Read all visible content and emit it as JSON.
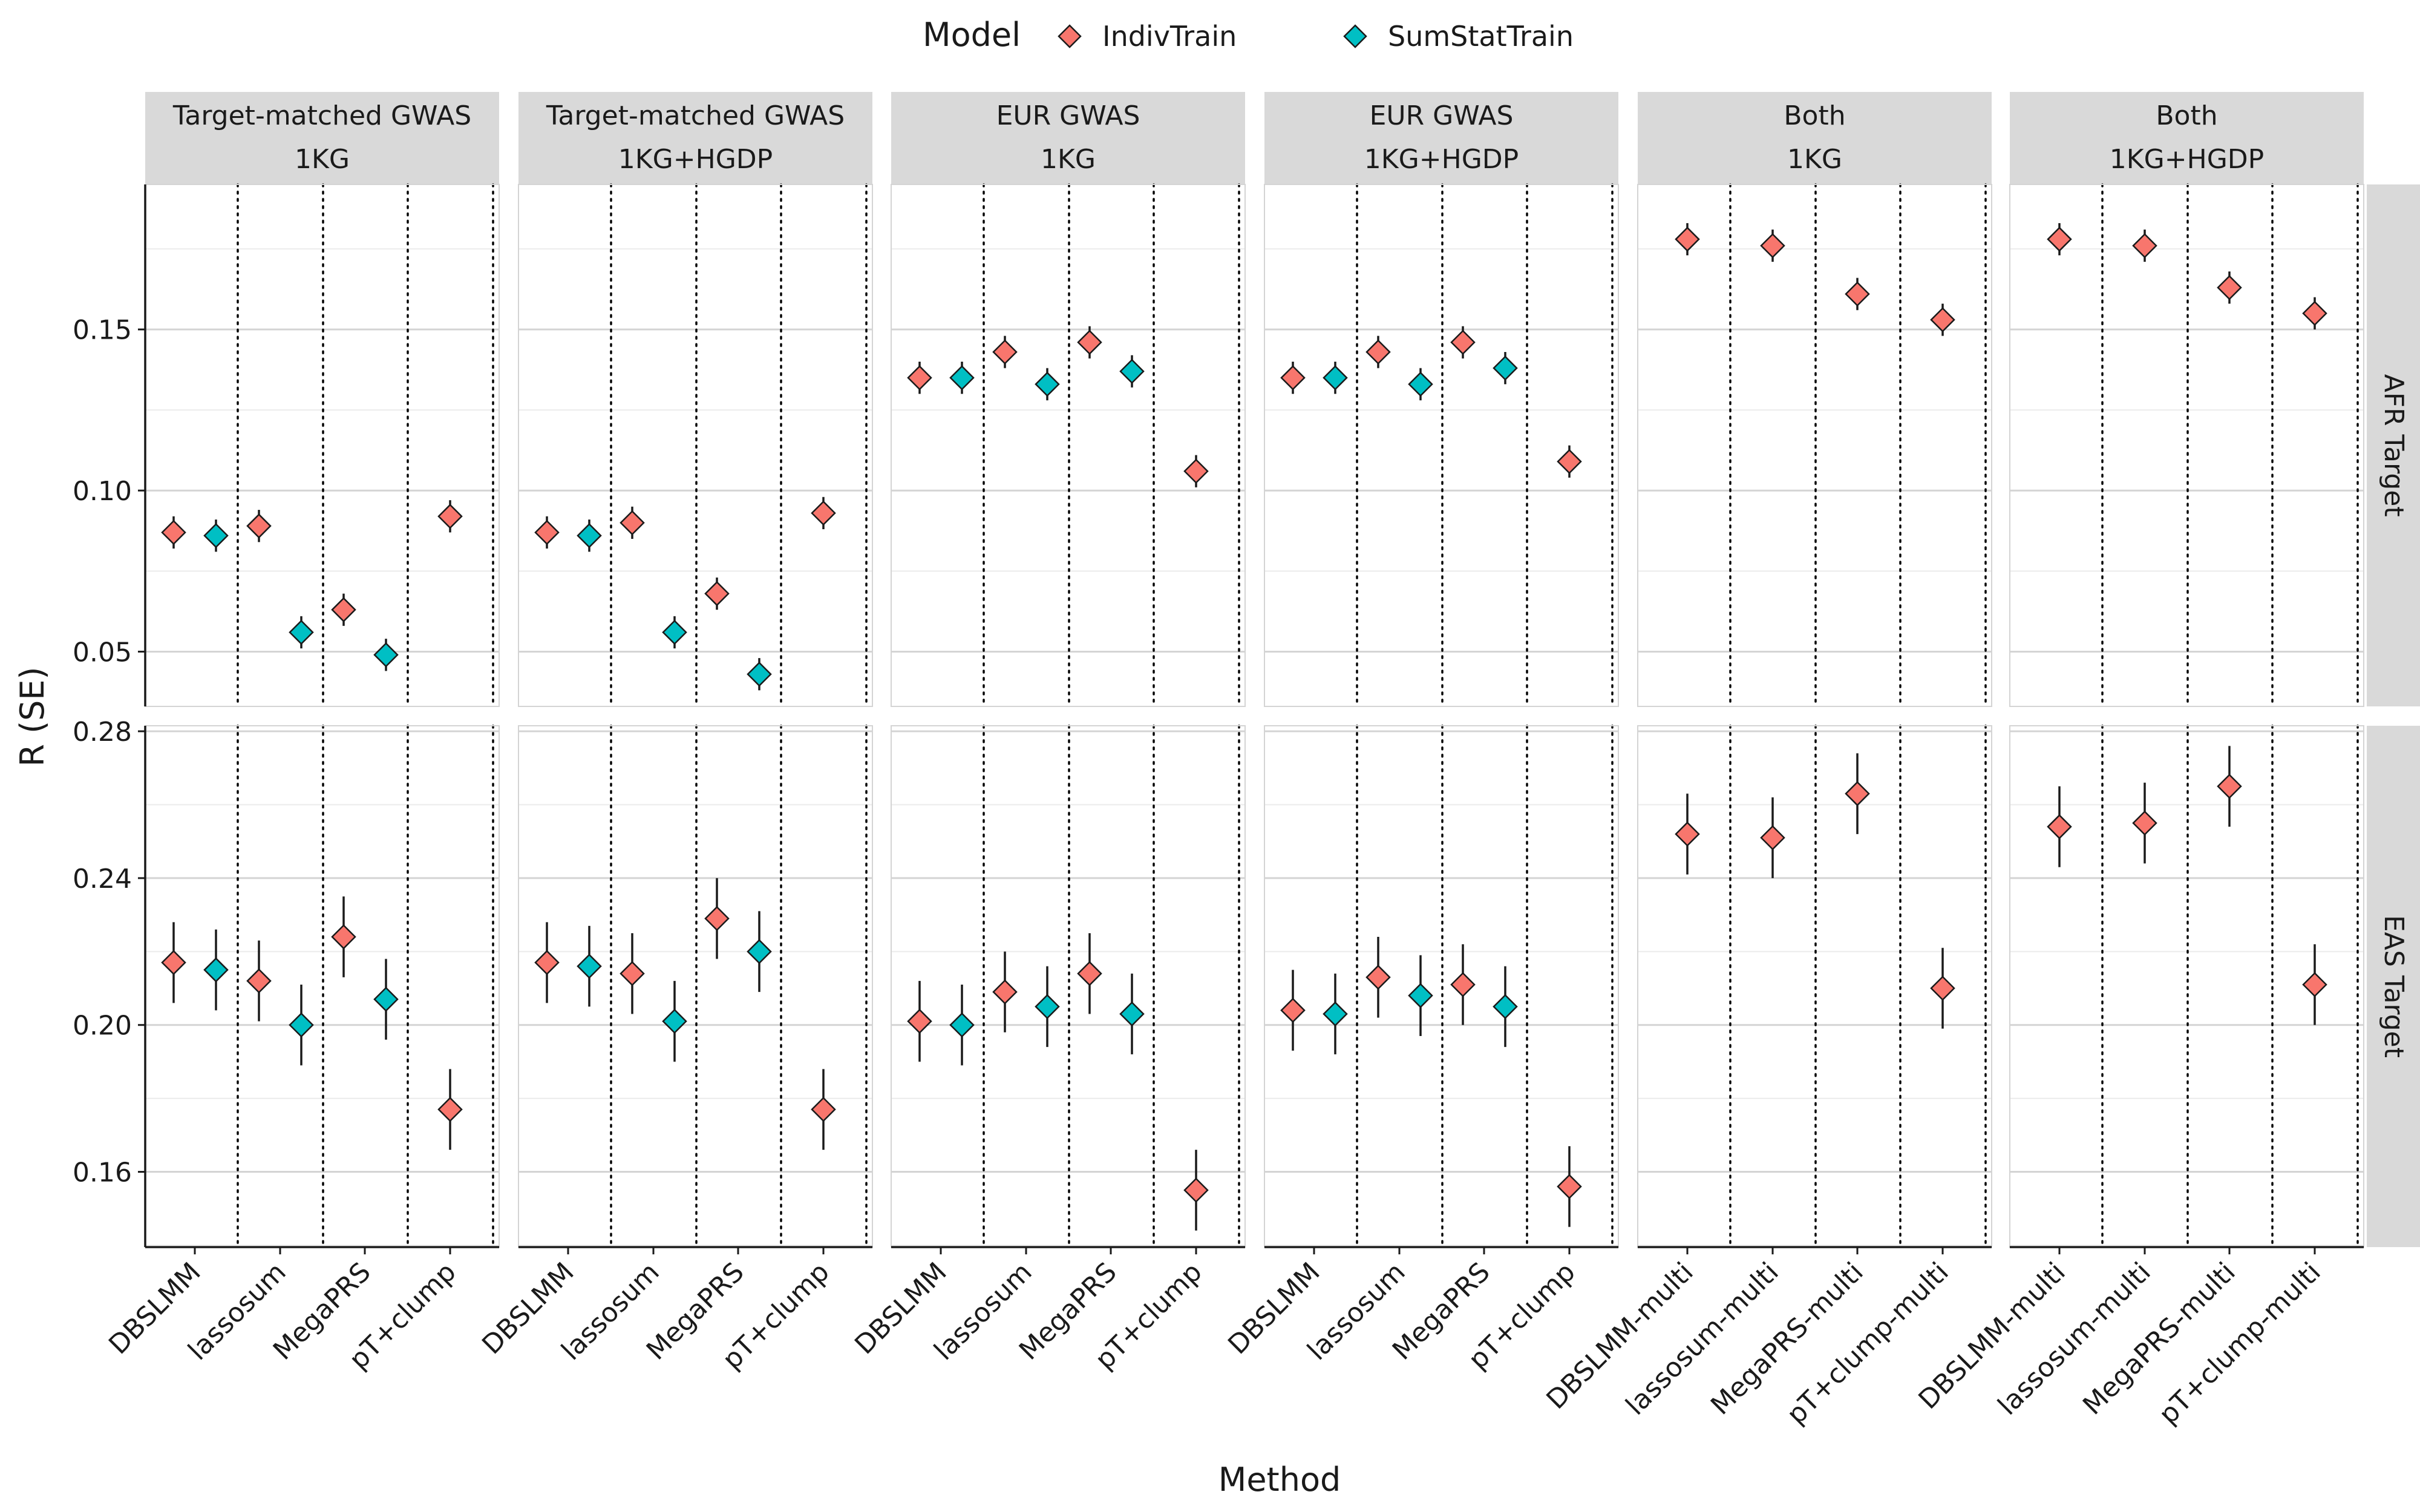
{
  "chart_data": {
    "type": "scatter",
    "subtype": "faceted point-range (value ± SE)",
    "xlabel": "Method",
    "ylabel": "R (SE)",
    "legend": {
      "title": "Model",
      "position": "top",
      "entries": [
        {
          "name": "IndivTrain",
          "color": "#F8766D",
          "marker": "diamond"
        },
        {
          "name": "SumStatTrain",
          "color": "#00BFC4",
          "marker": "diamond"
        }
      ]
    },
    "grid": true,
    "columns": [
      {
        "title_line1": "Target-matched GWAS",
        "title_line2": "1KG",
        "methods": [
          "DBSLMM",
          "lassosum",
          "MegaPRS",
          "pT+clump"
        ]
      },
      {
        "title_line1": "Target-matched GWAS",
        "title_line2": "1KG+HGDP",
        "methods": [
          "DBSLMM",
          "lassosum",
          "MegaPRS",
          "pT+clump"
        ]
      },
      {
        "title_line1": "EUR GWAS",
        "title_line2": "1KG",
        "methods": [
          "DBSLMM",
          "lassosum",
          "MegaPRS",
          "pT+clump"
        ]
      },
      {
        "title_line1": "EUR GWAS",
        "title_line2": "1KG+HGDP",
        "methods": [
          "DBSLMM",
          "lassosum",
          "MegaPRS",
          "pT+clump"
        ]
      },
      {
        "title_line1": "Both",
        "title_line2": "1KG",
        "methods": [
          "DBSLMM-multi",
          "lassosum-multi",
          "MegaPRS-multi",
          "pT+clump-multi"
        ]
      },
      {
        "title_line1": "Both",
        "title_line2": "1KG+HGDP",
        "methods": [
          "DBSLMM-multi",
          "lassosum-multi",
          "MegaPRS-multi",
          "pT+clump-multi"
        ]
      }
    ],
    "rows": [
      {
        "label": "AFR Target",
        "ylim": [
          0.033,
          0.195
        ],
        "ticks": [
          0.05,
          0.1,
          0.15
        ],
        "tick_labels": [
          "0.05",
          "0.10",
          "0.15"
        ]
      },
      {
        "label": "EAS Target",
        "ylim": [
          0.1395,
          0.2815
        ],
        "ticks": [
          0.16,
          0.2,
          0.24,
          0.28
        ],
        "tick_labels": [
          "0.16",
          "0.20",
          "0.24",
          "0.28"
        ]
      }
    ],
    "points": [
      {
        "row": 0,
        "col": 0,
        "method": 0,
        "series": "IndivTrain",
        "r": 0.087,
        "se": 0.005
      },
      {
        "row": 0,
        "col": 0,
        "method": 0,
        "series": "SumStatTrain",
        "r": 0.086,
        "se": 0.005
      },
      {
        "row": 0,
        "col": 0,
        "method": 1,
        "series": "IndivTrain",
        "r": 0.089,
        "se": 0.005
      },
      {
        "row": 0,
        "col": 0,
        "method": 1,
        "series": "SumStatTrain",
        "r": 0.056,
        "se": 0.005
      },
      {
        "row": 0,
        "col": 0,
        "method": 2,
        "series": "IndivTrain",
        "r": 0.063,
        "se": 0.005
      },
      {
        "row": 0,
        "col": 0,
        "method": 2,
        "series": "SumStatTrain",
        "r": 0.049,
        "se": 0.005
      },
      {
        "row": 0,
        "col": 0,
        "method": 3,
        "series": "IndivTrain",
        "r": 0.092,
        "se": 0.005
      },
      {
        "row": 0,
        "col": 1,
        "method": 0,
        "series": "IndivTrain",
        "r": 0.087,
        "se": 0.005
      },
      {
        "row": 0,
        "col": 1,
        "method": 0,
        "series": "SumStatTrain",
        "r": 0.086,
        "se": 0.005
      },
      {
        "row": 0,
        "col": 1,
        "method": 1,
        "series": "IndivTrain",
        "r": 0.09,
        "se": 0.005
      },
      {
        "row": 0,
        "col": 1,
        "method": 1,
        "series": "SumStatTrain",
        "r": 0.056,
        "se": 0.005
      },
      {
        "row": 0,
        "col": 1,
        "method": 2,
        "series": "IndivTrain",
        "r": 0.068,
        "se": 0.005
      },
      {
        "row": 0,
        "col": 1,
        "method": 2,
        "series": "SumStatTrain",
        "r": 0.043,
        "se": 0.005
      },
      {
        "row": 0,
        "col": 1,
        "method": 3,
        "series": "IndivTrain",
        "r": 0.093,
        "se": 0.005
      },
      {
        "row": 0,
        "col": 2,
        "method": 0,
        "series": "IndivTrain",
        "r": 0.135,
        "se": 0.005
      },
      {
        "row": 0,
        "col": 2,
        "method": 0,
        "series": "SumStatTrain",
        "r": 0.135,
        "se": 0.005
      },
      {
        "row": 0,
        "col": 2,
        "method": 1,
        "series": "IndivTrain",
        "r": 0.143,
        "se": 0.005
      },
      {
        "row": 0,
        "col": 2,
        "method": 1,
        "series": "SumStatTrain",
        "r": 0.133,
        "se": 0.005
      },
      {
        "row": 0,
        "col": 2,
        "method": 2,
        "series": "IndivTrain",
        "r": 0.146,
        "se": 0.005
      },
      {
        "row": 0,
        "col": 2,
        "method": 2,
        "series": "SumStatTrain",
        "r": 0.137,
        "se": 0.005
      },
      {
        "row": 0,
        "col": 2,
        "method": 3,
        "series": "IndivTrain",
        "r": 0.106,
        "se": 0.005
      },
      {
        "row": 0,
        "col": 3,
        "method": 0,
        "series": "IndivTrain",
        "r": 0.135,
        "se": 0.005
      },
      {
        "row": 0,
        "col": 3,
        "method": 0,
        "series": "SumStatTrain",
        "r": 0.135,
        "se": 0.005
      },
      {
        "row": 0,
        "col": 3,
        "method": 1,
        "series": "IndivTrain",
        "r": 0.143,
        "se": 0.005
      },
      {
        "row": 0,
        "col": 3,
        "method": 1,
        "series": "SumStatTrain",
        "r": 0.133,
        "se": 0.005
      },
      {
        "row": 0,
        "col": 3,
        "method": 2,
        "series": "IndivTrain",
        "r": 0.146,
        "se": 0.005
      },
      {
        "row": 0,
        "col": 3,
        "method": 2,
        "series": "SumStatTrain",
        "r": 0.138,
        "se": 0.005
      },
      {
        "row": 0,
        "col": 3,
        "method": 3,
        "series": "IndivTrain",
        "r": 0.109,
        "se": 0.005
      },
      {
        "row": 0,
        "col": 4,
        "method": 0,
        "series": "IndivTrain",
        "r": 0.178,
        "se": 0.005
      },
      {
        "row": 0,
        "col": 4,
        "method": 1,
        "series": "IndivTrain",
        "r": 0.176,
        "se": 0.005
      },
      {
        "row": 0,
        "col": 4,
        "method": 2,
        "series": "IndivTrain",
        "r": 0.161,
        "se": 0.005
      },
      {
        "row": 0,
        "col": 4,
        "method": 3,
        "series": "IndivTrain",
        "r": 0.153,
        "se": 0.005
      },
      {
        "row": 0,
        "col": 5,
        "method": 0,
        "series": "IndivTrain",
        "r": 0.178,
        "se": 0.005
      },
      {
        "row": 0,
        "col": 5,
        "method": 1,
        "series": "IndivTrain",
        "r": 0.176,
        "se": 0.005
      },
      {
        "row": 0,
        "col": 5,
        "method": 2,
        "series": "IndivTrain",
        "r": 0.163,
        "se": 0.005
      },
      {
        "row": 0,
        "col": 5,
        "method": 3,
        "series": "IndivTrain",
        "r": 0.155,
        "se": 0.005
      },
      {
        "row": 1,
        "col": 0,
        "method": 0,
        "series": "IndivTrain",
        "r": 0.217,
        "se": 0.011
      },
      {
        "row": 1,
        "col": 0,
        "method": 0,
        "series": "SumStatTrain",
        "r": 0.215,
        "se": 0.011
      },
      {
        "row": 1,
        "col": 0,
        "method": 1,
        "series": "IndivTrain",
        "r": 0.212,
        "se": 0.011
      },
      {
        "row": 1,
        "col": 0,
        "method": 1,
        "series": "SumStatTrain",
        "r": 0.2,
        "se": 0.011
      },
      {
        "row": 1,
        "col": 0,
        "method": 2,
        "series": "IndivTrain",
        "r": 0.224,
        "se": 0.011
      },
      {
        "row": 1,
        "col": 0,
        "method": 2,
        "series": "SumStatTrain",
        "r": 0.207,
        "se": 0.011
      },
      {
        "row": 1,
        "col": 0,
        "method": 3,
        "series": "IndivTrain",
        "r": 0.177,
        "se": 0.011
      },
      {
        "row": 1,
        "col": 1,
        "method": 0,
        "series": "IndivTrain",
        "r": 0.217,
        "se": 0.011
      },
      {
        "row": 1,
        "col": 1,
        "method": 0,
        "series": "SumStatTrain",
        "r": 0.216,
        "se": 0.011
      },
      {
        "row": 1,
        "col": 1,
        "method": 1,
        "series": "IndivTrain",
        "r": 0.214,
        "se": 0.011
      },
      {
        "row": 1,
        "col": 1,
        "method": 1,
        "series": "SumStatTrain",
        "r": 0.201,
        "se": 0.011
      },
      {
        "row": 1,
        "col": 1,
        "method": 2,
        "series": "IndivTrain",
        "r": 0.229,
        "se": 0.011
      },
      {
        "row": 1,
        "col": 1,
        "method": 2,
        "series": "SumStatTrain",
        "r": 0.22,
        "se": 0.011
      },
      {
        "row": 1,
        "col": 1,
        "method": 3,
        "series": "IndivTrain",
        "r": 0.177,
        "se": 0.011
      },
      {
        "row": 1,
        "col": 2,
        "method": 0,
        "series": "IndivTrain",
        "r": 0.201,
        "se": 0.011
      },
      {
        "row": 1,
        "col": 2,
        "method": 0,
        "series": "SumStatTrain",
        "r": 0.2,
        "se": 0.011
      },
      {
        "row": 1,
        "col": 2,
        "method": 1,
        "series": "IndivTrain",
        "r": 0.209,
        "se": 0.011
      },
      {
        "row": 1,
        "col": 2,
        "method": 1,
        "series": "SumStatTrain",
        "r": 0.205,
        "se": 0.011
      },
      {
        "row": 1,
        "col": 2,
        "method": 2,
        "series": "IndivTrain",
        "r": 0.214,
        "se": 0.011
      },
      {
        "row": 1,
        "col": 2,
        "method": 2,
        "series": "SumStatTrain",
        "r": 0.203,
        "se": 0.011
      },
      {
        "row": 1,
        "col": 2,
        "method": 3,
        "series": "IndivTrain",
        "r": 0.155,
        "se": 0.011
      },
      {
        "row": 1,
        "col": 3,
        "method": 0,
        "series": "IndivTrain",
        "r": 0.204,
        "se": 0.011
      },
      {
        "row": 1,
        "col": 3,
        "method": 0,
        "series": "SumStatTrain",
        "r": 0.203,
        "se": 0.011
      },
      {
        "row": 1,
        "col": 3,
        "method": 1,
        "series": "IndivTrain",
        "r": 0.213,
        "se": 0.011
      },
      {
        "row": 1,
        "col": 3,
        "method": 1,
        "series": "SumStatTrain",
        "r": 0.208,
        "se": 0.011
      },
      {
        "row": 1,
        "col": 3,
        "method": 2,
        "series": "IndivTrain",
        "r": 0.211,
        "se": 0.011
      },
      {
        "row": 1,
        "col": 3,
        "method": 2,
        "series": "SumStatTrain",
        "r": 0.205,
        "se": 0.011
      },
      {
        "row": 1,
        "col": 3,
        "method": 3,
        "series": "IndivTrain",
        "r": 0.156,
        "se": 0.011
      },
      {
        "row": 1,
        "col": 4,
        "method": 0,
        "series": "IndivTrain",
        "r": 0.252,
        "se": 0.011
      },
      {
        "row": 1,
        "col": 4,
        "method": 1,
        "series": "IndivTrain",
        "r": 0.251,
        "se": 0.011
      },
      {
        "row": 1,
        "col": 4,
        "method": 2,
        "series": "IndivTrain",
        "r": 0.263,
        "se": 0.011
      },
      {
        "row": 1,
        "col": 4,
        "method": 3,
        "series": "IndivTrain",
        "r": 0.21,
        "se": 0.011
      },
      {
        "row": 1,
        "col": 5,
        "method": 0,
        "series": "IndivTrain",
        "r": 0.254,
        "se": 0.011
      },
      {
        "row": 1,
        "col": 5,
        "method": 1,
        "series": "IndivTrain",
        "r": 0.255,
        "se": 0.011
      },
      {
        "row": 1,
        "col": 5,
        "method": 2,
        "series": "IndivTrain",
        "r": 0.265,
        "se": 0.011
      },
      {
        "row": 1,
        "col": 5,
        "method": 3,
        "series": "IndivTrain",
        "r": 0.211,
        "se": 0.011
      }
    ]
  }
}
